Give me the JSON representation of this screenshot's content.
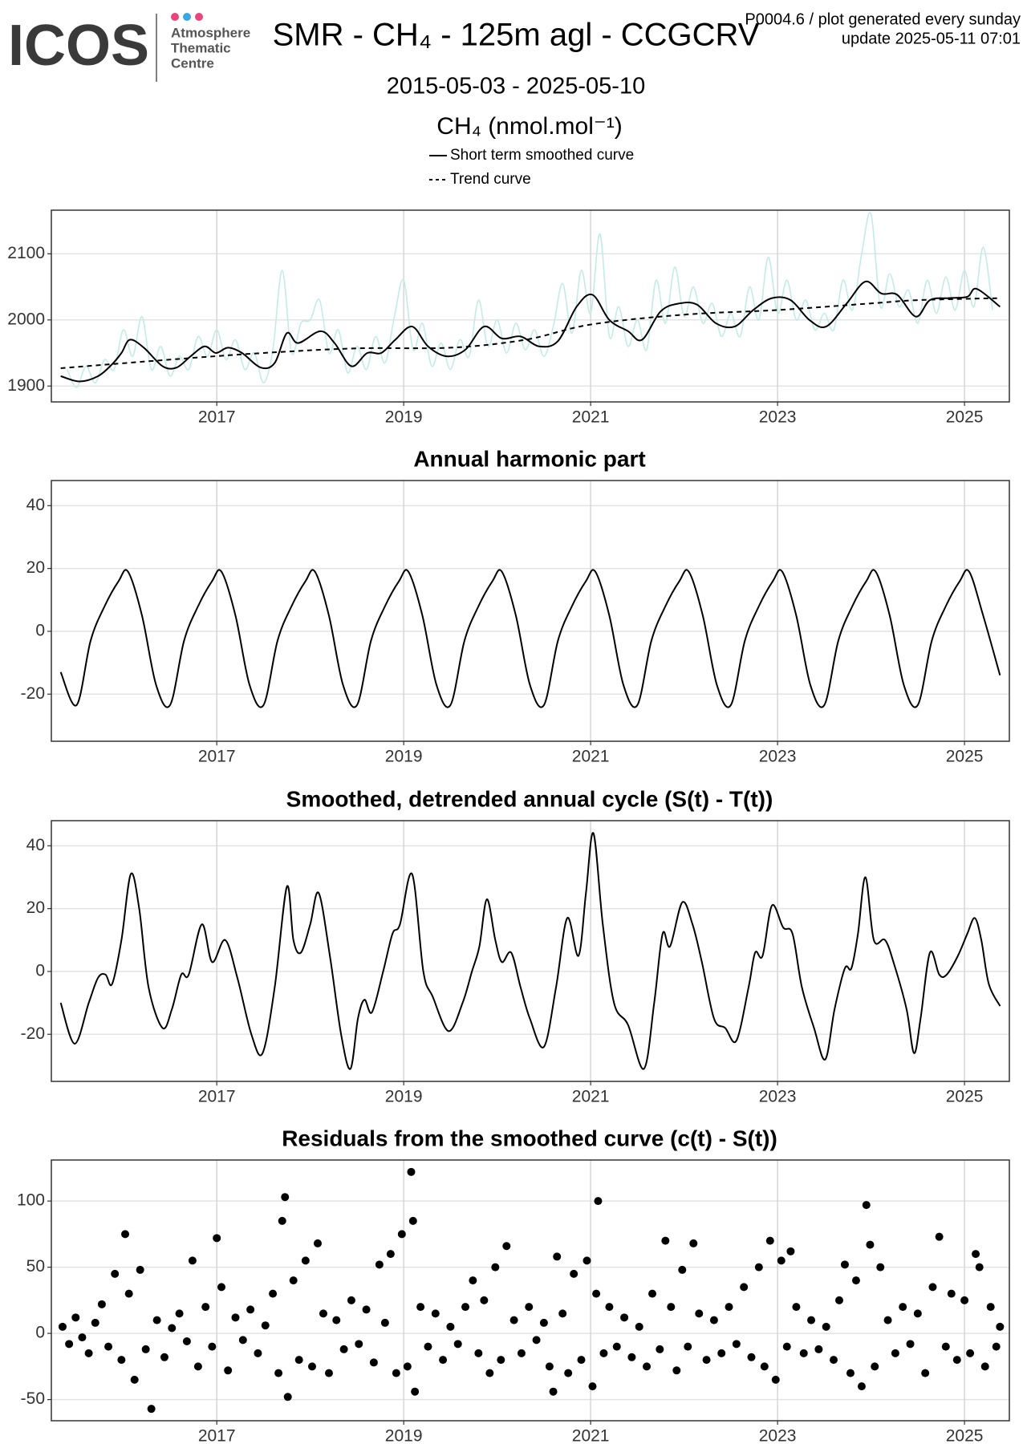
{
  "header": {
    "logo": "ICOS",
    "logo_lines": [
      "Atmosphere",
      "Thematic",
      "Centre"
    ],
    "title": "SMR - CH₄ - 125m agl - CCGCRV",
    "subtitle": "2015-05-03 - 2025-05-10",
    "notes": [
      "P0004.6 / plot generated every sunday",
      "update  2025-05-11 07:01"
    ]
  },
  "chart_data": [
    {
      "type": "line",
      "ylabel": "CH₄ (nmol.mol⁻¹)",
      "xlim": [
        2015.23,
        2025.48
      ],
      "ylim": [
        1876,
        2166
      ],
      "xticks": [
        2017,
        2019,
        2021,
        2023,
        2025
      ],
      "yticks": [
        1900,
        2000,
        2100
      ],
      "grid": true,
      "series": [
        {
          "color": "#c4ebe5",
          "x": [
            2015.4,
            2015.5,
            2015.6,
            2015.7,
            2015.8,
            2015.9,
            2016.0,
            2016.1,
            2016.2,
            2016.3,
            2016.4,
            2016.5,
            2016.6,
            2016.7,
            2016.8,
            2016.9,
            2017.0,
            2017.1,
            2017.2,
            2017.3,
            2017.4,
            2017.5,
            2017.6,
            2017.7,
            2017.8,
            2017.9,
            2018.0,
            2018.1,
            2018.2,
            2018.3,
            2018.4,
            2018.5,
            2018.6,
            2018.7,
            2018.8,
            2018.9,
            2019.0,
            2019.1,
            2019.2,
            2019.3,
            2019.4,
            2019.5,
            2019.6,
            2019.7,
            2019.8,
            2019.9,
            2020.0,
            2020.1,
            2020.2,
            2020.3,
            2020.4,
            2020.5,
            2020.6,
            2020.7,
            2020.8,
            2020.9,
            2021.0,
            2021.1,
            2021.2,
            2021.3,
            2021.4,
            2021.5,
            2021.6,
            2021.7,
            2021.8,
            2021.9,
            2022.0,
            2022.1,
            2022.2,
            2022.3,
            2022.4,
            2022.5,
            2022.6,
            2022.7,
            2022.8,
            2022.9,
            2023.0,
            2023.1,
            2023.2,
            2023.3,
            2023.4,
            2023.5,
            2023.6,
            2023.7,
            2023.8,
            2023.9,
            2024.0,
            2024.1,
            2024.2,
            2024.3,
            2024.4,
            2024.5,
            2024.6,
            2024.7,
            2024.8,
            2024.9,
            2025.0,
            2025.1,
            2025.2,
            2025.3
          ],
          "values": [
            1925,
            1898,
            1930,
            1905,
            1940,
            1925,
            1985,
            1945,
            2005,
            1925,
            1960,
            1915,
            1945,
            1925,
            1975,
            1945,
            1985,
            1940,
            1970,
            1925,
            1950,
            1905,
            1955,
            2075,
            1950,
            1995,
            2000,
            2030,
            1950,
            1985,
            1920,
            1960,
            1925,
            1975,
            1935,
            2005,
            2060,
            1955,
            1995,
            1930,
            1965,
            1925,
            1970,
            1945,
            2030,
            1960,
            2000,
            1950,
            1995,
            1955,
            1985,
            1945,
            1990,
            2055,
            1980,
            2075,
            2010,
            2130,
            1975,
            2020,
            1960,
            2000,
            1955,
            2060,
            1995,
            2080,
            2005,
            2050,
            1995,
            2025,
            1975,
            2010,
            1975,
            2050,
            2000,
            2095,
            2010,
            2060,
            2000,
            2030,
            1985,
            2010,
            1985,
            2060,
            2015,
            2100,
            2160,
            2020,
            2070,
            2020,
            2045,
            1995,
            2060,
            2010,
            2065,
            2015,
            2075,
            2020,
            2110,
            2015
          ]
        },
        {
          "name": "Short term smoothed curve",
          "color": "#000000",
          "x": [
            2015.33,
            2015.53,
            2015.73,
            2015.88,
            2015.98,
            2016.07,
            2016.22,
            2016.42,
            2016.57,
            2016.72,
            2016.87,
            2016.99,
            2017.12,
            2017.27,
            2017.47,
            2017.62,
            2017.75,
            2017.87,
            2018.11,
            2018.26,
            2018.44,
            2018.61,
            2018.76,
            2018.91,
            2019.09,
            2019.26,
            2019.46,
            2019.66,
            2019.86,
            2020.05,
            2020.25,
            2020.45,
            2020.65,
            2020.85,
            2021.02,
            2021.2,
            2021.4,
            2021.55,
            2021.75,
            2021.95,
            2022.14,
            2022.34,
            2022.54,
            2022.74,
            2022.94,
            2023.14,
            2023.34,
            2023.52,
            2023.74,
            2023.94,
            2024.11,
            2024.28,
            2024.48,
            2024.63,
            2024.83,
            2025.03,
            2025.13,
            2025.38
          ],
          "values": [
            1915,
            1907,
            1915,
            1933,
            1950,
            1970,
            1958,
            1930,
            1928,
            1945,
            1960,
            1950,
            1958,
            1950,
            1928,
            1935,
            1980,
            1965,
            1983,
            1965,
            1930,
            1950,
            1950,
            1970,
            1990,
            1960,
            1945,
            1955,
            1990,
            1972,
            1975,
            1960,
            1968,
            2020,
            2038,
            2000,
            1983,
            1970,
            2013,
            2025,
            2023,
            1995,
            1990,
            2015,
            2033,
            2030,
            2000,
            1990,
            2025,
            2058,
            2040,
            2038,
            2005,
            2030,
            2033,
            2035,
            2047,
            2020
          ]
        },
        {
          "name": "Trend curve",
          "color": "#000000",
          "dash": true,
          "x": [
            2015.33,
            2016.5,
            2017.5,
            2018.5,
            2019.5,
            2020.3,
            2021.0,
            2022.0,
            2023.0,
            2024.0,
            2024.5,
            2025.38
          ],
          "values": [
            1927,
            1940,
            1950,
            1957,
            1958,
            1970,
            1993,
            2008,
            2015,
            2025,
            2030,
            2033
          ]
        }
      ]
    },
    {
      "type": "line",
      "title": "Annual harmonic part",
      "xlim": [
        2015.23,
        2025.48
      ],
      "ylim": [
        -35,
        48
      ],
      "xticks": [
        2017,
        2019,
        2021,
        2023,
        2025
      ],
      "yticks": [
        -20,
        0,
        20,
        40
      ],
      "grid": true,
      "series": [
        {
          "color": "#000000",
          "x": [
            2015.33,
            2015.5,
            2015.65,
            2015.8,
            2015.95,
            2016.05,
            2016.2,
            2016.35,
            2016.5,
            2016.65,
            2016.8,
            2016.95,
            2017.05,
            2017.2,
            2017.35,
            2017.5,
            2017.65,
            2017.8,
            2017.95,
            2018.05,
            2018.2,
            2018.35,
            2018.5,
            2018.65,
            2018.8,
            2018.95,
            2019.05,
            2019.2,
            2019.35,
            2019.5,
            2019.65,
            2019.8,
            2019.95,
            2020.05,
            2020.2,
            2020.35,
            2020.5,
            2020.65,
            2020.8,
            2020.95,
            2021.05,
            2021.2,
            2021.35,
            2021.5,
            2021.65,
            2021.8,
            2021.95,
            2022.05,
            2022.2,
            2022.35,
            2022.5,
            2022.65,
            2022.8,
            2022.95,
            2023.05,
            2023.2,
            2023.35,
            2023.5,
            2023.65,
            2023.8,
            2023.95,
            2024.05,
            2024.2,
            2024.35,
            2024.5,
            2024.65,
            2024.8,
            2024.95,
            2025.05,
            2025.2,
            2025.38
          ],
          "values": [
            -13,
            -23.5,
            -3,
            8,
            16,
            19,
            5,
            -17,
            -23.5,
            -3,
            8,
            16,
            19,
            5,
            -17,
            -23.5,
            -3,
            8,
            16,
            19,
            5,
            -17,
            -23.5,
            -3,
            8,
            16,
            19,
            5,
            -17,
            -23.5,
            -3,
            8,
            16,
            19,
            5,
            -17,
            -23.5,
            -3,
            8,
            16,
            19,
            5,
            -17,
            -23.5,
            -3,
            8,
            16,
            19,
            5,
            -17,
            -23.5,
            -3,
            8,
            16,
            19,
            5,
            -17,
            -23.5,
            -3,
            8,
            16,
            19,
            5,
            -17,
            -23.5,
            -3,
            8,
            16,
            19,
            5,
            -14
          ]
        }
      ]
    },
    {
      "type": "line",
      "title": "Smoothed, detrended annual cycle (S(t) - T(t))",
      "xlim": [
        2015.23,
        2025.48
      ],
      "ylim": [
        -35,
        48
      ],
      "xticks": [
        2017,
        2019,
        2021,
        2023,
        2025
      ],
      "yticks": [
        -20,
        0,
        20,
        40
      ],
      "grid": true,
      "series": [
        {
          "color": "#000000",
          "x": [
            2015.33,
            2015.48,
            2015.63,
            2015.73,
            2015.81,
            2015.88,
            2015.98,
            2016.08,
            2016.17,
            2016.27,
            2016.42,
            2016.52,
            2016.62,
            2016.7,
            2016.84,
            2016.95,
            2017.09,
            2017.22,
            2017.37,
            2017.49,
            2017.62,
            2017.75,
            2017.82,
            2017.9,
            2018.0,
            2018.09,
            2018.21,
            2018.33,
            2018.43,
            2018.51,
            2018.58,
            2018.66,
            2018.78,
            2018.88,
            2018.96,
            2019.09,
            2019.21,
            2019.31,
            2019.48,
            2019.63,
            2019.73,
            2019.81,
            2019.89,
            2019.98,
            2020.05,
            2020.15,
            2020.25,
            2020.35,
            2020.5,
            2020.63,
            2020.75,
            2020.87,
            2020.95,
            2021.03,
            2021.13,
            2021.25,
            2021.4,
            2021.57,
            2021.68,
            2021.77,
            2021.85,
            2021.98,
            2022.09,
            2022.19,
            2022.32,
            2022.44,
            2022.56,
            2022.69,
            2022.76,
            2022.84,
            2022.94,
            2023.06,
            2023.16,
            2023.26,
            2023.39,
            2023.51,
            2023.61,
            2023.72,
            2023.79,
            2023.86,
            2023.94,
            2024.03,
            2024.15,
            2024.25,
            2024.38,
            2024.46,
            2024.53,
            2024.63,
            2024.73,
            2024.81,
            2024.93,
            2025.03,
            2025.11,
            2025.18,
            2025.26,
            2025.38
          ],
          "values": [
            -10,
            -23,
            -10,
            -2,
            -1,
            -4,
            10,
            31,
            20,
            -5,
            -18,
            -12,
            -1,
            -1,
            15,
            3,
            10,
            -2,
            -20,
            -26,
            -5,
            27,
            10,
            6,
            15,
            25,
            5,
            -20,
            -31,
            -15,
            -9,
            -13,
            0,
            12,
            15,
            31,
            0,
            -8,
            -19,
            -10,
            0,
            8,
            23,
            10,
            3,
            6,
            -5,
            -15,
            -24,
            -5,
            17,
            5,
            25,
            44,
            15,
            -10,
            -17,
            -31,
            -10,
            12,
            8,
            22,
            15,
            3,
            -15,
            -18,
            -22,
            -5,
            6,
            5,
            21,
            14,
            12,
            -5,
            -18,
            -28,
            -12,
            1,
            1,
            12,
            30,
            10,
            10,
            2,
            -12,
            -26,
            -15,
            6,
            -1,
            -1,
            5,
            12,
            17,
            10,
            -4,
            -11
          ]
        }
      ]
    },
    {
      "type": "scatter",
      "title": "Residuals from the smoothed curve (c(t) - S(t))",
      "xlim": [
        2015.23,
        2025.48
      ],
      "ylim": [
        -66,
        131
      ],
      "xticks": [
        2017,
        2019,
        2021,
        2023,
        2025
      ],
      "yticks": [
        -50,
        0,
        50,
        100
      ],
      "grid": true,
      "color": "#000000",
      "x": [
        2015.35,
        2015.42,
        2015.49,
        2015.56,
        2015.63,
        2015.7,
        2015.77,
        2015.84,
        2015.91,
        2015.98,
        2016.02,
        2016.06,
        2016.12,
        2016.18,
        2016.24,
        2016.3,
        2016.36,
        2016.44,
        2016.52,
        2016.6,
        2016.68,
        2016.74,
        2016.8,
        2016.88,
        2016.95,
        2017.0,
        2017.05,
        2017.12,
        2017.2,
        2017.28,
        2017.36,
        2017.44,
        2017.52,
        2017.6,
        2017.66,
        2017.7,
        2017.73,
        2017.76,
        2017.82,
        2017.88,
        2017.95,
        2018.02,
        2018.08,
        2018.14,
        2018.2,
        2018.28,
        2018.36,
        2018.44,
        2018.52,
        2018.6,
        2018.68,
        2018.74,
        2018.8,
        2018.86,
        2018.92,
        2018.98,
        2019.04,
        2019.08,
        2019.1,
        2019.12,
        2019.18,
        2019.26,
        2019.34,
        2019.42,
        2019.5,
        2019.58,
        2019.66,
        2019.74,
        2019.8,
        2019.86,
        2019.92,
        2019.98,
        2020.04,
        2020.1,
        2020.18,
        2020.26,
        2020.34,
        2020.42,
        2020.5,
        2020.56,
        2020.6,
        2020.64,
        2020.7,
        2020.76,
        2020.82,
        2020.9,
        2020.96,
        2021.02,
        2021.06,
        2021.08,
        2021.14,
        2021.2,
        2021.28,
        2021.36,
        2021.44,
        2021.52,
        2021.6,
        2021.66,
        2021.74,
        2021.8,
        2021.86,
        2021.92,
        2021.98,
        2022.04,
        2022.1,
        2022.16,
        2022.24,
        2022.32,
        2022.4,
        2022.48,
        2022.56,
        2022.64,
        2022.72,
        2022.8,
        2022.86,
        2022.92,
        2022.98,
        2023.04,
        2023.1,
        2023.14,
        2023.2,
        2023.28,
        2023.36,
        2023.44,
        2023.52,
        2023.6,
        2023.66,
        2023.72,
        2023.78,
        2023.84,
        2023.9,
        2023.95,
        2023.99,
        2024.04,
        2024.1,
        2024.18,
        2024.26,
        2024.34,
        2024.42,
        2024.5,
        2024.58,
        2024.66,
        2024.73,
        2024.8,
        2024.86,
        2024.92,
        2025.0,
        2025.06,
        2025.12,
        2025.16,
        2025.22,
        2025.28,
        2025.34,
        2025.38
      ],
      "values": [
        5,
        -8,
        12,
        -3,
        -15,
        8,
        22,
        -10,
        45,
        -20,
        75,
        30,
        -35,
        48,
        -12,
        -57,
        10,
        -18,
        4,
        15,
        -6,
        55,
        -25,
        20,
        -10,
        72,
        35,
        -28,
        12,
        -5,
        18,
        -15,
        6,
        30,
        -30,
        85,
        103,
        -48,
        40,
        -20,
        55,
        -25,
        68,
        15,
        -30,
        10,
        -12,
        25,
        -8,
        18,
        -22,
        52,
        8,
        60,
        -30,
        75,
        -25,
        122,
        85,
        -44,
        20,
        -10,
        15,
        -20,
        5,
        -8,
        20,
        40,
        -15,
        25,
        -30,
        50,
        -20,
        66,
        10,
        -15,
        20,
        -5,
        8,
        -25,
        -44,
        58,
        15,
        -30,
        45,
        -20,
        55,
        -40,
        30,
        100,
        -15,
        20,
        -10,
        12,
        -18,
        5,
        -25,
        30,
        -12,
        70,
        20,
        -28,
        48,
        -10,
        68,
        15,
        -20,
        10,
        -15,
        20,
        -8,
        35,
        -18,
        50,
        -25,
        70,
        -35,
        55,
        -10,
        62,
        20,
        -15,
        10,
        -12,
        5,
        -20,
        25,
        52,
        -30,
        40,
        -40,
        97,
        67,
        -25,
        50,
        10,
        -15,
        20,
        -8,
        15,
        -30,
        35,
        73,
        -10,
        30,
        -20,
        25,
        -15,
        60,
        50,
        -25,
        20,
        -10,
        5
      ]
    }
  ]
}
